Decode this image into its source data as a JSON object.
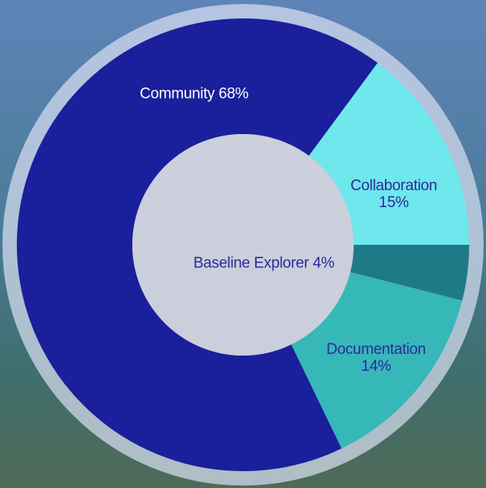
{
  "chart_data": {
    "type": "pie",
    "categories": [
      "Baseline Explorer",
      "Documentation",
      "Community",
      "Collaboration"
    ],
    "values": [
      4,
      14,
      68,
      15
    ],
    "value_labels": [
      "Baseline Explorer 4%",
      "Documentation 14%",
      "Community 68%",
      "Collaboration 15%"
    ],
    "colors": [
      "#1f7a87",
      "#36b8b8",
      "#1a1f9c",
      "#6ee8ec"
    ]
  }
}
